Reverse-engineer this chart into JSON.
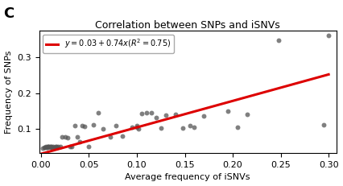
{
  "title": "Correlation between SNPs and iSNVs",
  "panel_label": "C",
  "xlabel": "Average frequency of iSNVs",
  "ylabel": "Frequency of SNPs",
  "intercept": 0.03,
  "slope": 0.74,
  "xlim": [
    -0.002,
    0.308
  ],
  "ylim": [
    0.032,
    0.375
  ],
  "xticks": [
    0.0,
    0.05,
    0.1,
    0.15,
    0.2,
    0.25,
    0.3
  ],
  "yticks": [
    0.1,
    0.2,
    0.3
  ],
  "dot_color": "#555555",
  "dot_alpha": 0.75,
  "dot_size": 18,
  "line_color": "#dd0000",
  "line_width": 2.2,
  "scatter_x": [
    0.002,
    0.003,
    0.004,
    0.005,
    0.006,
    0.007,
    0.007,
    0.008,
    0.008,
    0.009,
    0.01,
    0.01,
    0.011,
    0.012,
    0.013,
    0.014,
    0.015,
    0.016,
    0.017,
    0.018,
    0.02,
    0.022,
    0.025,
    0.028,
    0.03,
    0.032,
    0.035,
    0.038,
    0.04,
    0.043,
    0.045,
    0.05,
    0.055,
    0.06,
    0.065,
    0.072,
    0.078,
    0.085,
    0.095,
    0.1,
    0.1,
    0.102,
    0.105,
    0.11,
    0.115,
    0.12,
    0.125,
    0.13,
    0.14,
    0.148,
    0.155,
    0.16,
    0.17,
    0.195,
    0.205,
    0.215,
    0.248,
    0.295,
    0.3
  ],
  "scatter_y": [
    0.047,
    0.048,
    0.049,
    0.05,
    0.048,
    0.049,
    0.05,
    0.05,
    0.051,
    0.05,
    0.049,
    0.05,
    0.05,
    0.049,
    0.05,
    0.048,
    0.05,
    0.051,
    0.049,
    0.05,
    0.05,
    0.078,
    0.077,
    0.076,
    0.05,
    0.05,
    0.108,
    0.078,
    0.065,
    0.108,
    0.106,
    0.05,
    0.112,
    0.145,
    0.1,
    0.078,
    0.11,
    0.08,
    0.105,
    0.108,
    0.105,
    0.1,
    0.142,
    0.145,
    0.145,
    0.132,
    0.102,
    0.138,
    0.14,
    0.102,
    0.11,
    0.105,
    0.135,
    0.15,
    0.105,
    0.14,
    0.347,
    0.112,
    0.36
  ]
}
